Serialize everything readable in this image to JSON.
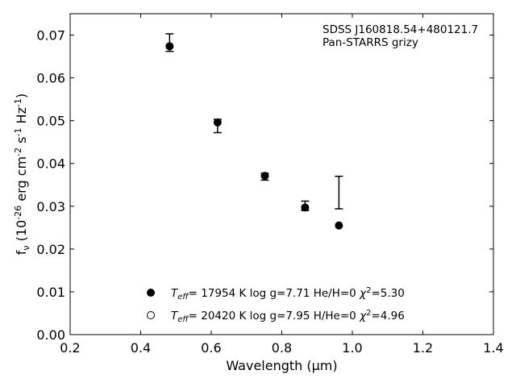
{
  "chart_data": {
    "type": "scatter",
    "annotations": [
      "SDSS J160818.54+480121.7",
      "Pan-STARRS grizy"
    ],
    "xlabel": "Wavelength (μm)",
    "ylabel": "f_ν (10^-26 erg cm^-2 s^-1 Hz^-1)",
    "xlim": [
      0.2,
      1.4
    ],
    "ylim": [
      0.0,
      0.075
    ],
    "x_ticks": [
      0.2,
      0.4,
      0.6,
      0.8,
      1.0,
      1.2,
      1.4
    ],
    "x_tick_labels": [
      "0.2",
      "0.4",
      "0.6",
      "0.8",
      "1.0",
      "1.2",
      "1.4"
    ],
    "y_ticks": [
      0.0,
      0.01,
      0.02,
      0.03,
      0.04,
      0.05,
      0.06,
      0.07
    ],
    "y_tick_labels": [
      "0.00",
      "0.01",
      "0.02",
      "0.03",
      "0.04",
      "0.05",
      "0.06",
      "0.07"
    ],
    "grid": false,
    "legend_position": "bottom-center",
    "observed": [
      {
        "x": 0.482,
        "y": 0.0674,
        "ylow": 0.0662,
        "yhigh": 0.0703
      },
      {
        "x": 0.618,
        "y": 0.0499,
        "ylow": 0.0472,
        "yhigh": 0.0503
      },
      {
        "x": 0.752,
        "y": 0.0372,
        "ylow": 0.0361,
        "yhigh": 0.0377
      },
      {
        "x": 0.866,
        "y": 0.0298,
        "ylow": 0.029,
        "yhigh": 0.0312
      },
      {
        "x": 0.962,
        "ylow": 0.0294,
        "yhigh": 0.037
      }
    ],
    "series": [
      {
        "marker": "filled-circle",
        "legend_parts": [
          "T",
          "eff",
          "= 17954 K  log g=7.71  He/H=0  ",
          "χ",
          "2",
          "=5.30"
        ],
        "points": [
          {
            "x": 0.482,
            "y": 0.0674
          },
          {
            "x": 0.618,
            "y": 0.0496
          },
          {
            "x": 0.752,
            "y": 0.0371
          },
          {
            "x": 0.866,
            "y": 0.0297
          },
          {
            "x": 0.962,
            "y": 0.0255
          }
        ]
      },
      {
        "marker": "open-circle",
        "legend_parts": [
          "T",
          "eff",
          "= 20420 K  log g=7.95  H/He=0  ",
          "χ",
          "2",
          "=4.96"
        ],
        "points": []
      }
    ]
  }
}
